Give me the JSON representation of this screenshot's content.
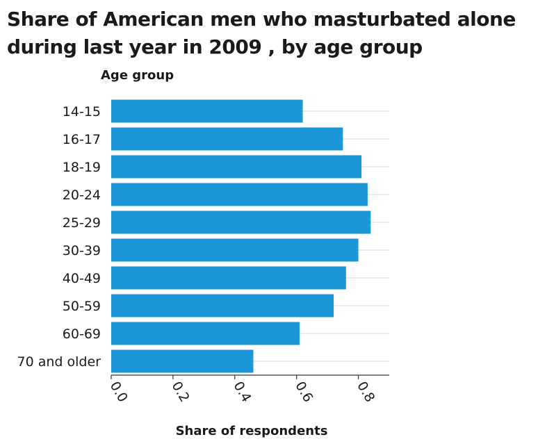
{
  "chart_data": {
    "type": "bar",
    "orientation": "horizontal",
    "title": "Share of American men who masturbated alone during last year in 2009 , by age group",
    "ylabel": "Age group",
    "xlabel": "Share of respondents",
    "categories": [
      "14-15",
      "16-17",
      "18-19",
      "20-24",
      "25-29",
      "30-39",
      "40-49",
      "50-59",
      "60-69",
      "70 and older"
    ],
    "values": [
      0.62,
      0.75,
      0.81,
      0.83,
      0.84,
      0.8,
      0.76,
      0.72,
      0.61,
      0.46
    ],
    "xlim": [
      0,
      0.9
    ],
    "xticks": [
      "0.0",
      "0.2",
      "0.4",
      "0.6",
      "0.8"
    ],
    "bar_color": "#1b96d6",
    "grid_color": "#d9d9d9",
    "grid": true,
    "legend": "none"
  }
}
